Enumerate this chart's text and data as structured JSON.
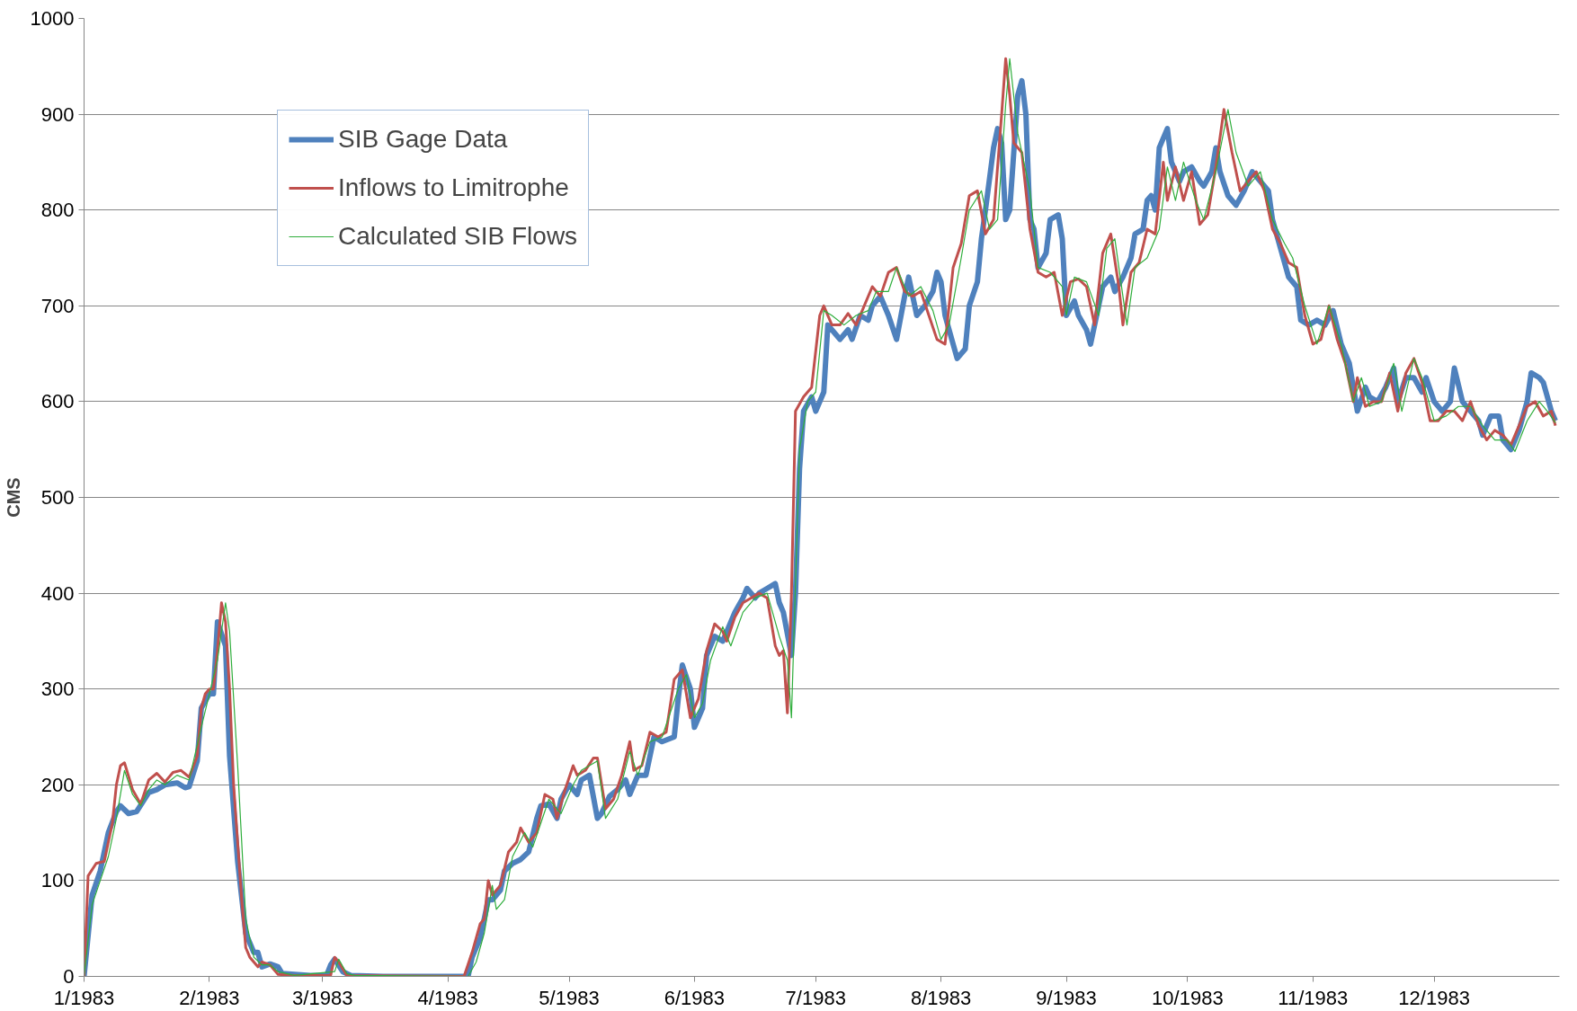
{
  "chart_data": {
    "type": "line",
    "ylabel": "CMS",
    "xlim": [
      "1983-01-01",
      "1984-01-01"
    ],
    "xticks": [
      {
        "value": "1983-01-01",
        "label": "1/1983"
      },
      {
        "value": "1983-02-01",
        "label": "2/1983"
      },
      {
        "value": "1983-03-01",
        "label": "3/1983"
      },
      {
        "value": "1983-04-01",
        "label": "4/1983"
      },
      {
        "value": "1983-05-01",
        "label": "5/1983"
      },
      {
        "value": "1983-06-01",
        "label": "6/1983"
      },
      {
        "value": "1983-07-01",
        "label": "7/1983"
      },
      {
        "value": "1983-08-01",
        "label": "8/1983"
      },
      {
        "value": "1983-09-01",
        "label": "9/1983"
      },
      {
        "value": "1983-10-01",
        "label": "10/1983"
      },
      {
        "value": "1983-11-01",
        "label": "11/1983"
      },
      {
        "value": "1983-12-01",
        "label": "12/1983"
      }
    ],
    "ylim": [
      0,
      1000
    ],
    "yticks": [
      0,
      100,
      200,
      300,
      400,
      500,
      600,
      700,
      800,
      900,
      1000
    ],
    "grid": "y",
    "legend": "top left",
    "marker": "none",
    "line_style": "solid",
    "series": [
      {
        "name": "SIB Gage Data",
        "color": "#4f81bd",
        "x": [
          "1983-01-01",
          "1983-01-03",
          "1983-01-05",
          "1983-01-07",
          "1983-01-09",
          "1983-01-10",
          "1983-01-12",
          "1983-01-14",
          "1983-01-17",
          "1983-01-19",
          "1983-01-21",
          "1983-01-24",
          "1983-01-26",
          "1983-01-27",
          "1983-01-29",
          "1983-01-30",
          "1983-02-01",
          "1983-02-02",
          "1983-02-03",
          "1983-02-05",
          "1983-02-06",
          "1983-02-08",
          "1983-02-10",
          "1983-02-12",
          "1983-02-13",
          "1983-02-14",
          "1983-02-16",
          "1983-02-18",
          "1983-02-19",
          "1983-02-26",
          "1983-03-02",
          "1983-03-03",
          "1983-03-04",
          "1983-03-06",
          "1983-03-08",
          "1983-03-16",
          "1983-04-01",
          "1983-04-06",
          "1983-04-07",
          "1983-04-09",
          "1983-04-11",
          "1983-04-12",
          "1983-04-14",
          "1983-04-15",
          "1983-04-17",
          "1983-04-19",
          "1983-04-21",
          "1983-04-23",
          "1983-04-24",
          "1983-04-26",
          "1983-04-28",
          "1983-04-29",
          "1983-05-01",
          "1983-05-03",
          "1983-05-04",
          "1983-05-06",
          "1983-05-08",
          "1983-05-09",
          "1983-05-11",
          "1983-05-13",
          "1983-05-15",
          "1983-05-16",
          "1983-05-18",
          "1983-05-20",
          "1983-05-22",
          "1983-05-24",
          "1983-05-27",
          "1983-05-28",
          "1983-05-29",
          "1983-05-31",
          "1983-06-01",
          "1983-06-03",
          "1983-06-04",
          "1983-06-06",
          "1983-06-08",
          "1983-06-10",
          "1983-06-11",
          "1983-06-13",
          "1983-06-14",
          "1983-06-16",
          "1983-06-17",
          "1983-06-19",
          "1983-06-21",
          "1983-06-22",
          "1983-06-23",
          "1983-06-25",
          "1983-06-26",
          "1983-06-27",
          "1983-06-28",
          "1983-06-30",
          "1983-07-01",
          "1983-07-03",
          "1983-07-04",
          "1983-07-06",
          "1983-07-07",
          "1983-07-09",
          "1983-07-10",
          "1983-07-12",
          "1983-07-14",
          "1983-07-15",
          "1983-07-17",
          "1983-07-19",
          "1983-07-21",
          "1983-07-23",
          "1983-07-24",
          "1983-07-26",
          "1983-07-28",
          "1983-07-30",
          "1983-07-31",
          "1983-08-01",
          "1983-08-02",
          "1983-08-04",
          "1983-08-05",
          "1983-08-07",
          "1983-08-08",
          "1983-08-10",
          "1983-08-11",
          "1983-08-12",
          "1983-08-14",
          "1983-08-15",
          "1983-08-16",
          "1983-08-17",
          "1983-08-18",
          "1983-08-20",
          "1983-08-21",
          "1983-08-22",
          "1983-08-23",
          "1983-08-24",
          "1983-08-25",
          "1983-08-27",
          "1983-08-28",
          "1983-08-30",
          "1983-08-31",
          "1983-09-01",
          "1983-09-03",
          "1983-09-04",
          "1983-09-06",
          "1983-09-07",
          "1983-09-09",
          "1983-09-10",
          "1983-09-12",
          "1983-09-13",
          "1983-09-15",
          "1983-09-17",
          "1983-09-18",
          "1983-09-20",
          "1983-09-21",
          "1983-09-22",
          "1983-09-23",
          "1983-09-24",
          "1983-09-26",
          "1983-09-27",
          "1983-09-29",
          "1983-09-30",
          "1983-10-02",
          "1983-10-04",
          "1983-10-05",
          "1983-10-07",
          "1983-10-08",
          "1983-10-09",
          "1983-10-11",
          "1983-10-13",
          "1983-10-15",
          "1983-10-17",
          "1983-10-19",
          "1983-10-21",
          "1983-10-22",
          "1983-10-24",
          "1983-10-26",
          "1983-10-28",
          "1983-10-29",
          "1983-10-31",
          "1983-11-02",
          "1983-11-04",
          "1983-11-06",
          "1983-11-08",
          "1983-11-10",
          "1983-11-12",
          "1983-11-14",
          "1983-11-15",
          "1983-11-17",
          "1983-11-19",
          "1983-11-21",
          "1983-11-22",
          "1983-11-24",
          "1983-11-26",
          "1983-11-28",
          "1983-11-29",
          "1983-12-01",
          "1983-12-03",
          "1983-12-05",
          "1983-12-06",
          "1983-12-08",
          "1983-12-10",
          "1983-12-12",
          "1983-12-13",
          "1983-12-15",
          "1983-12-17",
          "1983-12-18",
          "1983-12-20",
          "1983-12-22",
          "1983-12-24",
          "1983-12-25",
          "1983-12-27",
          "1983-12-28",
          "1983-12-30",
          "1983-12-31"
        ],
        "values": [
          0,
          85,
          110,
          150,
          172,
          178,
          170,
          172,
          192,
          195,
          200,
          202,
          197,
          198,
          225,
          280,
          295,
          295,
          370,
          345,
          230,
          120,
          45,
          25,
          25,
          10,
          13,
          10,
          3,
          1,
          1,
          12,
          18,
          5,
          1,
          0,
          0,
          0,
          20,
          40,
          80,
          80,
          90,
          110,
          118,
          122,
          130,
          165,
          178,
          180,
          165,
          185,
          200,
          190,
          205,
          210,
          165,
          170,
          188,
          195,
          205,
          190,
          210,
          210,
          250,
          245,
          250,
          290,
          325,
          300,
          260,
          280,
          335,
          355,
          350,
          370,
          380,
          395,
          405,
          395,
          400,
          405,
          410,
          390,
          380,
          335,
          400,
          530,
          590,
          605,
          590,
          610,
          680,
          670,
          665,
          675,
          665,
          690,
          685,
          700,
          710,
          690,
          665,
          710,
          730,
          690,
          700,
          715,
          735,
          725,
          690,
          660,
          645,
          655,
          700,
          725,
          770,
          800,
          865,
          885,
          870,
          790,
          800,
          920,
          935,
          900,
          790,
          780,
          740,
          755,
          790,
          795,
          770,
          690,
          705,
          690,
          675,
          660,
          700,
          720,
          730,
          715,
          730,
          750,
          775,
          780,
          810,
          815,
          800,
          865,
          885,
          850,
          830,
          840,
          845,
          830,
          825,
          840,
          865,
          840,
          815,
          805,
          820,
          840,
          830,
          820,
          790,
          760,
          730,
          720,
          685,
          680,
          685,
          680,
          695,
          660,
          640,
          590,
          615,
          605,
          600,
          615,
          635,
          600,
          625,
          625,
          610,
          625,
          600,
          590,
          600,
          635,
          600,
          590,
          580,
          565,
          585,
          585,
          560,
          550,
          570,
          600,
          630,
          625,
          620,
          590,
          580
        ]
      },
      {
        "name": "Inflows to Limitrophe",
        "color": "#c0504d",
        "x": [
          "1983-01-01",
          "1983-01-02",
          "1983-01-04",
          "1983-01-06",
          "1983-01-08",
          "1983-01-09",
          "1983-01-10",
          "1983-01-11",
          "1983-01-13",
          "1983-01-15",
          "1983-01-17",
          "1983-01-19",
          "1983-01-21",
          "1983-01-23",
          "1983-01-25",
          "1983-01-27",
          "1983-01-29",
          "1983-01-30",
          "1983-01-31",
          "1983-02-01",
          "1983-02-02",
          "1983-02-03",
          "1983-02-04",
          "1983-02-05",
          "1983-02-06",
          "1983-02-07",
          "1983-02-09",
          "1983-02-10",
          "1983-02-11",
          "1983-02-13",
          "1983-02-14",
          "1983-02-16",
          "1983-02-18",
          "1983-02-22",
          "1983-03-03",
          "1983-03-04",
          "1983-03-05",
          "1983-03-07",
          "1983-04-05",
          "1983-04-07",
          "1983-04-09",
          "1983-04-10",
          "1983-04-11",
          "1983-04-12",
          "1983-04-14",
          "1983-04-16",
          "1983-04-18",
          "1983-04-19",
          "1983-04-21",
          "1983-04-23",
          "1983-04-25",
          "1983-04-27",
          "1983-04-28",
          "1983-04-30",
          "1983-05-02",
          "1983-05-03",
          "1983-05-05",
          "1983-05-07",
          "1983-05-08",
          "1983-05-10",
          "1983-05-12",
          "1983-05-14",
          "1983-05-16",
          "1983-05-17",
          "1983-05-19",
          "1983-05-21",
          "1983-05-23",
          "1983-05-25",
          "1983-05-27",
          "1983-05-29",
          "1983-05-31",
          "1983-06-02",
          "1983-06-04",
          "1983-06-06",
          "1983-06-08",
          "1983-06-09",
          "1983-06-11",
          "1983-06-13",
          "1983-06-15",
          "1983-06-17",
          "1983-06-19",
          "1983-06-21",
          "1983-06-22",
          "1983-06-23",
          "1983-06-24",
          "1983-06-25",
          "1983-06-26",
          "1983-06-28",
          "1983-06-30",
          "1983-07-02",
          "1983-07-03",
          "1983-07-05",
          "1983-07-07",
          "1983-07-09",
          "1983-07-11",
          "1983-07-13",
          "1983-07-15",
          "1983-07-17",
          "1983-07-19",
          "1983-07-21",
          "1983-07-23",
          "1983-07-25",
          "1983-07-27",
          "1983-07-29",
          "1983-07-31",
          "1983-08-02",
          "1983-08-04",
          "1983-08-06",
          "1983-08-08",
          "1983-08-10",
          "1983-08-12",
          "1983-08-14",
          "1983-08-16",
          "1983-08-17",
          "1983-08-18",
          "1983-08-19",
          "1983-08-21",
          "1983-08-23",
          "1983-08-25",
          "1983-08-27",
          "1983-08-29",
          "1983-08-31",
          "1983-09-02",
          "1983-09-04",
          "1983-09-06",
          "1983-09-08",
          "1983-09-10",
          "1983-09-12",
          "1983-09-14",
          "1983-09-15",
          "1983-09-17",
          "1983-09-19",
          "1983-09-21",
          "1983-09-23",
          "1983-09-25",
          "1983-09-26",
          "1983-09-28",
          "1983-09-30",
          "1983-10-02",
          "1983-10-04",
          "1983-10-06",
          "1983-10-08",
          "1983-10-10",
          "1983-10-12",
          "1983-10-14",
          "1983-10-16",
          "1983-10-18",
          "1983-10-20",
          "1983-10-22",
          "1983-10-24",
          "1983-10-26",
          "1983-10-28",
          "1983-10-30",
          "1983-11-01",
          "1983-11-03",
          "1983-11-05",
          "1983-11-07",
          "1983-11-09",
          "1983-11-11",
          "1983-11-12",
          "1983-11-14",
          "1983-11-16",
          "1983-11-18",
          "1983-11-20",
          "1983-11-22",
          "1983-11-24",
          "1983-11-26",
          "1983-11-28",
          "1983-11-30",
          "1983-12-02",
          "1983-12-04",
          "1983-12-06",
          "1983-12-08",
          "1983-12-10",
          "1983-12-12",
          "1983-12-14",
          "1983-12-16",
          "1983-12-18",
          "1983-12-20",
          "1983-12-22",
          "1983-12-24",
          "1983-12-26",
          "1983-12-28",
          "1983-12-30",
          "1983-12-31"
        ],
        "values": [
          0,
          105,
          118,
          120,
          160,
          200,
          220,
          223,
          195,
          180,
          205,
          212,
          203,
          213,
          215,
          208,
          230,
          280,
          295,
          300,
          300,
          340,
          390,
          370,
          300,
          200,
          80,
          30,
          20,
          10,
          15,
          12,
          2,
          1,
          1,
          20,
          15,
          1,
          0,
          25,
          55,
          60,
          100,
          85,
          95,
          130,
          140,
          155,
          140,
          150,
          190,
          185,
          165,
          195,
          220,
          210,
          215,
          228,
          228,
          175,
          185,
          210,
          245,
          215,
          220,
          255,
          250,
          255,
          310,
          320,
          270,
          290,
          340,
          368,
          360,
          350,
          375,
          390,
          395,
          400,
          395,
          345,
          335,
          340,
          275,
          400,
          590,
          605,
          615,
          690,
          700,
          680,
          680,
          692,
          680,
          700,
          720,
          710,
          735,
          740,
          715,
          710,
          715,
          690,
          665,
          660,
          740,
          765,
          815,
          820,
          775,
          790,
          900,
          958,
          920,
          870,
          860,
          780,
          735,
          730,
          735,
          690,
          725,
          728,
          720,
          680,
          755,
          775,
          720,
          680,
          735,
          745,
          780,
          775,
          850,
          810,
          845,
          810,
          840,
          785,
          795,
          845,
          905,
          860,
          820,
          830,
          840,
          820,
          780,
          765,
          745,
          740,
          690,
          660,
          665,
          700,
          665,
          640,
          600,
          625,
          595,
          600,
          600,
          630,
          590,
          630,
          645,
          620,
          580,
          580,
          590,
          590,
          580,
          600,
          575,
          560,
          570,
          565,
          555,
          575,
          595,
          600,
          585,
          590,
          575
        ]
      },
      {
        "name": "Calculated SIB Flows",
        "color": "#2fae3c",
        "x": [
          "1983-01-01",
          "1983-01-03",
          "1983-01-05",
          "1983-01-07",
          "1983-01-09",
          "1983-01-11",
          "1983-01-13",
          "1983-01-15",
          "1983-01-17",
          "1983-01-19",
          "1983-01-21",
          "1983-01-24",
          "1983-01-27",
          "1983-01-30",
          "1983-02-01",
          "1983-02-03",
          "1983-02-05",
          "1983-02-06",
          "1983-02-08",
          "1983-02-10",
          "1983-02-12",
          "1983-02-14",
          "1983-02-16",
          "1983-02-18",
          "1983-02-22",
          "1983-03-04",
          "1983-03-05",
          "1983-03-07",
          "1983-03-09",
          "1983-04-06",
          "1983-04-08",
          "1983-04-10",
          "1983-04-12",
          "1983-04-13",
          "1983-04-15",
          "1983-04-17",
          "1983-04-20",
          "1983-04-22",
          "1983-04-24",
          "1983-04-26",
          "1983-04-29",
          "1983-05-02",
          "1983-05-04",
          "1983-05-08",
          "1983-05-10",
          "1983-05-13",
          "1983-05-16",
          "1983-05-18",
          "1983-05-21",
          "1983-05-24",
          "1983-05-28",
          "1983-05-30",
          "1983-06-01",
          "1983-06-03",
          "1983-06-05",
          "1983-06-08",
          "1983-06-10",
          "1983-06-13",
          "1983-06-16",
          "1983-06-19",
          "1983-06-22",
          "1983-06-24",
          "1983-06-25",
          "1983-06-27",
          "1983-06-29",
          "1983-07-01",
          "1983-07-03",
          "1983-07-05",
          "1983-07-08",
          "1983-07-11",
          "1983-07-14",
          "1983-07-16",
          "1983-07-19",
          "1983-07-21",
          "1983-07-24",
          "1983-07-27",
          "1983-07-30",
          "1983-08-01",
          "1983-08-03",
          "1983-08-06",
          "1983-08-08",
          "1983-08-11",
          "1983-08-13",
          "1983-08-15",
          "1983-08-17",
          "1983-08-18",
          "1983-08-20",
          "1983-08-23",
          "1983-08-25",
          "1983-08-28",
          "1983-08-31",
          "1983-09-01",
          "1983-09-03",
          "1983-09-06",
          "1983-09-09",
          "1983-09-11",
          "1983-09-13",
          "1983-09-16",
          "1983-09-18",
          "1983-09-21",
          "1983-09-24",
          "1983-09-26",
          "1983-09-28",
          "1983-09-30",
          "1983-10-03",
          "1983-10-05",
          "1983-10-08",
          "1983-10-11",
          "1983-10-13",
          "1983-10-16",
          "1983-10-19",
          "1983-10-22",
          "1983-10-25",
          "1983-10-27",
          "1983-10-30",
          "1983-11-02",
          "1983-11-05",
          "1983-11-08",
          "1983-11-11",
          "1983-11-13",
          "1983-11-15",
          "1983-11-18",
          "1983-11-21",
          "1983-11-23",
          "1983-11-26",
          "1983-11-28",
          "1983-12-01",
          "1983-12-04",
          "1983-12-07",
          "1983-12-10",
          "1983-12-13",
          "1983-12-16",
          "1983-12-19",
          "1983-12-21",
          "1983-12-24",
          "1983-12-27",
          "1983-12-29",
          "1983-12-31"
        ],
        "values": [
          0,
          75,
          100,
          125,
          165,
          215,
          190,
          178,
          195,
          205,
          200,
          210,
          205,
          260,
          295,
          330,
          390,
          360,
          220,
          60,
          20,
          12,
          12,
          5,
          1,
          5,
          18,
          3,
          1,
          0,
          15,
          45,
          95,
          70,
          80,
          125,
          150,
          135,
          160,
          185,
          170,
          200,
          215,
          225,
          165,
          185,
          235,
          210,
          245,
          250,
          300,
          315,
          270,
          285,
          330,
          365,
          345,
          380,
          395,
          400,
          355,
          330,
          270,
          550,
          600,
          610,
          695,
          690,
          680,
          690,
          695,
          715,
          715,
          740,
          710,
          720,
          695,
          665,
          680,
          750,
          800,
          820,
          780,
          790,
          910,
          958,
          880,
          820,
          740,
          735,
          720,
          690,
          730,
          725,
          690,
          760,
          770,
          680,
          740,
          750,
          780,
          845,
          810,
          850,
          810,
          790,
          840,
          905,
          860,
          825,
          840,
          790,
          765,
          750,
          700,
          660,
          700,
          660,
          600,
          625,
          595,
          600,
          640,
          590,
          645,
          625,
          580,
          585,
          595,
          595,
          575,
          560,
          560,
          548,
          580,
          600,
          590,
          578
        ]
      }
    ]
  }
}
